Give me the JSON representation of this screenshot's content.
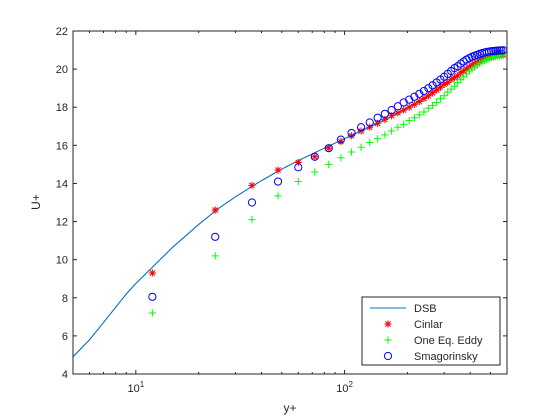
{
  "chart_data": {
    "type": "line",
    "title": "",
    "xlabel": "y+",
    "ylabel": "U+",
    "xscale": "log",
    "xlim": [
      5,
      600
    ],
    "ylim": [
      4,
      22
    ],
    "grid": false,
    "legend_location": "bottom-right",
    "x_ticks": [
      {
        "value": 10,
        "base": "10",
        "exp": "1"
      },
      {
        "value": 100,
        "base": "10",
        "exp": "2"
      }
    ],
    "y_ticks": [
      4,
      6,
      8,
      10,
      12,
      14,
      16,
      18,
      20,
      22
    ],
    "series": [
      {
        "name": "DSB",
        "style": "line",
        "color": "#0072BD",
        "x": [
          5,
          6,
          7,
          8,
          9,
          10,
          12,
          15,
          20,
          25,
          30,
          40,
          50,
          60,
          80,
          100,
          120,
          150,
          200,
          250,
          300,
          350,
          400,
          450,
          500,
          550,
          580
        ],
        "y": [
          4.9,
          5.8,
          6.7,
          7.5,
          8.2,
          8.75,
          9.6,
          10.65,
          11.85,
          12.7,
          13.3,
          14.15,
          14.75,
          15.2,
          15.85,
          16.35,
          16.75,
          17.25,
          17.95,
          18.6,
          19.2,
          19.7,
          20.2,
          20.55,
          20.8,
          20.95,
          21.0
        ]
      },
      {
        "name": "Cinlar",
        "style": "marker",
        "marker": "asterisk",
        "color": "#FF0000",
        "x": [
          12,
          24,
          36,
          48,
          60,
          72,
          84,
          96,
          108,
          120,
          132,
          144,
          156,
          168,
          180,
          192,
          204,
          216,
          228,
          240,
          252,
          264,
          276,
          288,
          300,
          312,
          324,
          336,
          348,
          360,
          372,
          384,
          396,
          408,
          420,
          432,
          444,
          456,
          468,
          480,
          492,
          504,
          516,
          528,
          540,
          552,
          564,
          576
        ],
        "y": [
          9.3,
          12.6,
          13.9,
          14.7,
          15.1,
          15.4,
          15.85,
          16.2,
          16.5,
          16.75,
          16.95,
          17.15,
          17.35,
          17.55,
          17.7,
          17.85,
          18.0,
          18.15,
          18.3,
          18.45,
          18.6,
          18.75,
          18.9,
          19.05,
          19.2,
          19.3,
          19.45,
          19.55,
          19.65,
          19.8,
          19.9,
          20.0,
          20.1,
          20.2,
          20.28,
          20.35,
          20.42,
          20.48,
          20.52,
          20.56,
          20.6,
          20.63,
          20.66,
          20.68,
          20.7,
          20.72,
          20.73,
          20.74
        ]
      },
      {
        "name": "One Eq. Eddy",
        "style": "marker",
        "marker": "plus",
        "color": "#00FF00",
        "x": [
          12,
          24,
          36,
          48,
          60,
          72,
          84,
          96,
          108,
          120,
          132,
          144,
          156,
          168,
          180,
          192,
          204,
          216,
          228,
          240,
          252,
          264,
          276,
          288,
          300,
          312,
          324,
          336,
          348,
          360,
          372,
          384,
          396,
          408,
          420,
          432,
          444,
          456,
          468,
          480,
          492,
          504,
          516,
          528,
          540,
          552,
          564,
          576
        ],
        "y": [
          7.2,
          10.2,
          12.1,
          13.35,
          14.1,
          14.6,
          15.0,
          15.35,
          15.65,
          15.9,
          16.15,
          16.35,
          16.55,
          16.75,
          16.95,
          17.1,
          17.3,
          17.45,
          17.6,
          17.75,
          17.95,
          18.1,
          18.25,
          18.45,
          18.6,
          18.8,
          18.95,
          19.1,
          19.3,
          19.45,
          19.6,
          19.75,
          19.9,
          20.0,
          20.1,
          20.2,
          20.3,
          20.38,
          20.45,
          20.5,
          20.55,
          20.6,
          20.63,
          20.66,
          20.68,
          20.7,
          20.72,
          20.74
        ]
      },
      {
        "name": "Smagorinsky",
        "style": "marker",
        "marker": "circle",
        "color": "#0000FF",
        "x": [
          12,
          24,
          36,
          48,
          60,
          72,
          84,
          96,
          108,
          120,
          132,
          144,
          156,
          168,
          180,
          192,
          204,
          216,
          228,
          240,
          252,
          264,
          276,
          288,
          300,
          312,
          324,
          336,
          348,
          360,
          372,
          384,
          396,
          408,
          420,
          432,
          444,
          456,
          468,
          480,
          492,
          504,
          516,
          528,
          540,
          552,
          564,
          576
        ],
        "y": [
          8.05,
          11.2,
          13.0,
          14.1,
          14.85,
          15.4,
          15.85,
          16.3,
          16.65,
          16.95,
          17.2,
          17.45,
          17.65,
          17.85,
          18.05,
          18.25,
          18.4,
          18.55,
          18.7,
          18.85,
          19.0,
          19.15,
          19.3,
          19.45,
          19.6,
          19.75,
          19.9,
          20.05,
          20.15,
          20.28,
          20.4,
          20.5,
          20.58,
          20.65,
          20.7,
          20.75,
          20.8,
          20.84,
          20.87,
          20.9,
          20.92,
          20.94,
          20.95,
          20.96,
          20.97,
          20.98,
          20.98,
          20.99
        ]
      }
    ]
  }
}
